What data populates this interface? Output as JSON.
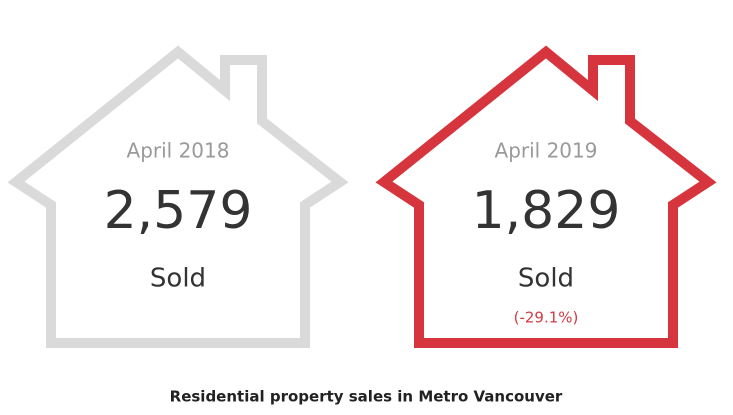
{
  "houses": [
    {
      "period": "April 2018",
      "value": "2,579",
      "unit": "Sold"
    },
    {
      "period": "April 2019",
      "value": "1,829",
      "unit": "Sold",
      "change": "(-29.1%)"
    }
  ],
  "caption": "Residential property sales in Metro Vancouver"
}
